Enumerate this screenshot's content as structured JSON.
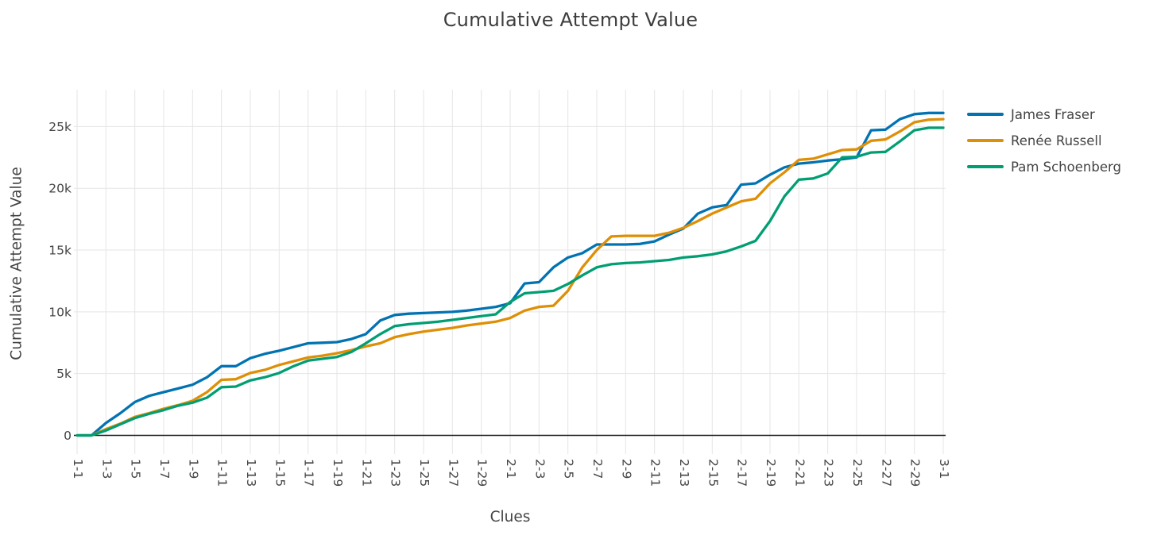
{
  "title": {
    "text": "Cumulative Attempt Value"
  },
  "x_axis": {
    "title": "Clues",
    "visible_tick_labels": [
      "1-1",
      "1-3",
      "1-5",
      "1-7",
      "1-9",
      "1-11",
      "1-13",
      "1-15",
      "1-17",
      "1-19",
      "1-21",
      "1-23",
      "1-25",
      "1-27",
      "1-29",
      "2-1",
      "2-3",
      "2-5",
      "2-7",
      "2-9",
      "2-11",
      "2-13",
      "2-15",
      "2-17",
      "2-19",
      "2-21",
      "2-23",
      "2-25",
      "2-27",
      "2-29",
      "3-1"
    ]
  },
  "y_axis": {
    "title": "Cumulative Attempt Value",
    "ticks": [
      {
        "label": "0",
        "value": 0
      },
      {
        "label": "5k",
        "value": 5000
      },
      {
        "label": "10k",
        "value": 10000
      },
      {
        "label": "15k",
        "value": 15000
      },
      {
        "label": "20k",
        "value": 20000
      },
      {
        "label": "25k",
        "value": 25000
      }
    ]
  },
  "colors": {
    "grid": "#e5e5e5",
    "zero_line": "#1c1c1c",
    "tick_text": "#444444",
    "title_text": "#3d3d3d"
  },
  "chart_data": {
    "type": "line",
    "title": "Cumulative Attempt Value",
    "xlabel": "Clues",
    "ylabel": "Cumulative Attempt Value",
    "ylim": [
      -1500,
      27900
    ],
    "grid": true,
    "legend_position": "right",
    "x_tick_step": 2,
    "x": [
      "1-1",
      "1-2",
      "1-3",
      "1-4",
      "1-5",
      "1-6",
      "1-7",
      "1-8",
      "1-9",
      "1-10",
      "1-11",
      "1-12",
      "1-13",
      "1-14",
      "1-15",
      "1-16",
      "1-17",
      "1-18",
      "1-19",
      "1-20",
      "1-21",
      "1-22",
      "1-23",
      "1-24",
      "1-25",
      "1-26",
      "1-27",
      "1-28",
      "1-29",
      "1-30",
      "2-1",
      "2-2",
      "2-3",
      "2-4",
      "2-5",
      "2-6",
      "2-7",
      "2-8",
      "2-9",
      "2-10",
      "2-11",
      "2-12",
      "2-13",
      "2-14",
      "2-15",
      "2-16",
      "2-17",
      "2-18",
      "2-19",
      "2-20",
      "2-21",
      "2-22",
      "2-23",
      "2-24",
      "2-25",
      "2-26",
      "2-27",
      "2-28",
      "2-29",
      "2-30",
      "3-1"
    ],
    "series": [
      {
        "name": "James Fraser",
        "color": "#0173b2",
        "values": [
          0,
          0,
          1000,
          1800,
          2700,
          3200,
          3500,
          3800,
          4100,
          4700,
          5600,
          5600,
          6250,
          6600,
          6850,
          7150,
          7450,
          7500,
          7550,
          7800,
          8200,
          9300,
          9750,
          9850,
          9900,
          9950,
          10000,
          10100,
          10250,
          10400,
          10700,
          12300,
          12400,
          13600,
          14400,
          14750,
          15450,
          15450,
          15450,
          15500,
          15700,
          16250,
          16750,
          17950,
          18450,
          18650,
          20300,
          20400,
          21100,
          21700,
          22000,
          22100,
          22250,
          22350,
          22500,
          24700,
          24750,
          25600,
          26000,
          26100,
          26100
        ]
      },
      {
        "name": "Renée Russell",
        "color": "#de8f05",
        "values": [
          0,
          0,
          500,
          950,
          1500,
          1800,
          2150,
          2450,
          2800,
          3500,
          4500,
          4550,
          5050,
          5300,
          5700,
          6000,
          6300,
          6450,
          6650,
          6900,
          7200,
          7450,
          7950,
          8200,
          8400,
          8550,
          8700,
          8900,
          9050,
          9200,
          9500,
          10100,
          10400,
          10500,
          11700,
          13600,
          15000,
          16100,
          16150,
          16150,
          16150,
          16400,
          16800,
          17350,
          17950,
          18450,
          18950,
          19150,
          20400,
          21300,
          22300,
          22400,
          22750,
          23100,
          23150,
          23850,
          23950,
          24600,
          25350,
          25550,
          25600
        ]
      },
      {
        "name": "Pam Schoenberg",
        "color": "#029e73",
        "values": [
          0,
          0,
          400,
          900,
          1400,
          1750,
          2050,
          2400,
          2650,
          3050,
          3900,
          3950,
          4450,
          4700,
          5050,
          5600,
          6050,
          6200,
          6350,
          6750,
          7450,
          8200,
          8850,
          9000,
          9100,
          9200,
          9350,
          9500,
          9650,
          9800,
          10800,
          11500,
          11600,
          11700,
          12250,
          12950,
          13600,
          13850,
          13950,
          14000,
          14100,
          14200,
          14400,
          14500,
          14650,
          14900,
          15300,
          15750,
          17350,
          19350,
          20700,
          20800,
          21200,
          22500,
          22550,
          22900,
          22950,
          23800,
          24700,
          24900,
          24900
        ]
      }
    ]
  }
}
